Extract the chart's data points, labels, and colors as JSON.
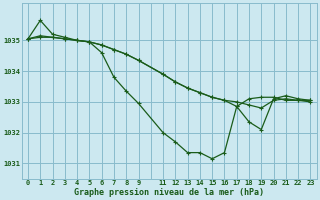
{
  "title": "Graphe pression niveau de la mer (hPa)",
  "bg_color": "#cce8f0",
  "grid_color": "#88bbcc",
  "line_color": "#1a5c1a",
  "xlim": [
    -0.5,
    23.5
  ],
  "ylim": [
    1030.5,
    1036.2
  ],
  "yticks": [
    1031,
    1032,
    1033,
    1034,
    1035
  ],
  "xtick_labels": [
    "0",
    "1",
    "2",
    "3",
    "4",
    "5",
    "6",
    "7",
    "8",
    "9",
    "",
    "11",
    "12",
    "13",
    "14",
    "15",
    "16",
    "17",
    "18",
    "19",
    "20",
    "21",
    "22",
    "23"
  ],
  "line1_x": [
    0,
    1,
    2,
    3,
    4,
    5,
    6,
    7,
    8,
    9,
    11,
    12,
    13,
    14,
    15,
    16,
    17,
    18,
    19,
    20,
    21,
    22,
    23
  ],
  "line1_y": [
    1035.05,
    1035.65,
    1035.2,
    1035.1,
    1035.0,
    1034.95,
    1034.6,
    1033.8,
    1033.35,
    1032.95,
    1032.0,
    1031.7,
    1031.35,
    1031.35,
    1031.15,
    1031.35,
    1032.85,
    1033.1,
    1033.15,
    1033.15,
    1033.05,
    1033.05,
    1033.05
  ],
  "line2_x": [
    0,
    1,
    2,
    3,
    4,
    5,
    6,
    7,
    8,
    9,
    11,
    12,
    13,
    14,
    15,
    16,
    17,
    18,
    19,
    20,
    21,
    22,
    23
  ],
  "line2_y": [
    1035.05,
    1035.1,
    1035.1,
    1035.05,
    1035.0,
    1034.95,
    1034.85,
    1034.7,
    1034.55,
    1034.35,
    1033.9,
    1033.65,
    1033.45,
    1033.3,
    1033.15,
    1033.05,
    1033.0,
    1032.9,
    1032.8,
    1033.05,
    1033.1,
    1033.05,
    1033.0
  ],
  "line3_x": [
    0,
    1,
    2,
    3,
    4,
    5,
    6,
    7,
    8,
    9,
    11,
    12,
    13,
    14,
    15,
    16,
    17,
    18,
    19,
    20,
    21,
    22,
    23
  ],
  "line3_y": [
    1035.05,
    1035.15,
    1035.1,
    1035.05,
    1035.0,
    1034.95,
    1034.85,
    1034.7,
    1034.55,
    1034.35,
    1033.9,
    1033.65,
    1033.45,
    1033.3,
    1033.15,
    1033.05,
    1032.85,
    1032.35,
    1032.1,
    1033.1,
    1033.2,
    1033.1,
    1033.05
  ]
}
